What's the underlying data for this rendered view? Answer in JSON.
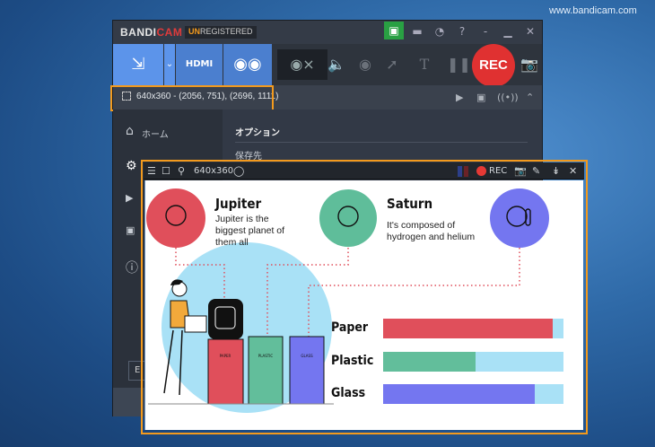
{
  "watermark": "www.bandicam.com",
  "window": {
    "logo_a": "BANDI",
    "logo_b": "CAM",
    "unreg_a": "UN",
    "unreg_b": "REGISTERED",
    "title_icons": [
      "lock-icon",
      "folder-icon",
      "clock-icon",
      "help-icon",
      "minimize-icon",
      "restore-icon",
      "close-icon"
    ],
    "title_glyphs": {
      "folder": "▬",
      "clock": "◔",
      "help": "?",
      "min": "-",
      "restore": "▁",
      "close": "✕",
      "lock": "🔒"
    },
    "modes": {
      "screen": "⇲",
      "drop": "⌄",
      "hdmi": "HDMI",
      "game": "🎮"
    },
    "rec_label": "REC",
    "area_text": "640x360 - (2056, 751), (2696, 1111)",
    "sidebar": {
      "home": "ホーム"
    },
    "content": {
      "section": "オプション",
      "save": "保存先"
    },
    "bottom_button": "E"
  },
  "overlay": {
    "size": "640x360",
    "rec_label": "REC"
  },
  "infographic": {
    "items": [
      {
        "title": "Jupiter",
        "desc": "Jupiter is the biggest planet of them all",
        "color": "#e04f5b"
      },
      {
        "title": "Saturn",
        "desc": "It's composed of hydrogen and helium",
        "color": "#5fbd9a"
      },
      {
        "title": "",
        "desc": "",
        "color": "#7476f0"
      }
    ],
    "bin_labels": [
      "PAPER",
      "PLASTIC",
      "GLASS"
    ],
    "bars": [
      {
        "label": "Paper",
        "percent": 94,
        "color": "#e04f5b"
      },
      {
        "label": "Plastic",
        "percent": 51,
        "color": "#62be9b"
      },
      {
        "label": "Glass",
        "percent": 84,
        "color": "#7476f0"
      }
    ],
    "track_color": "#a9e1f6"
  }
}
